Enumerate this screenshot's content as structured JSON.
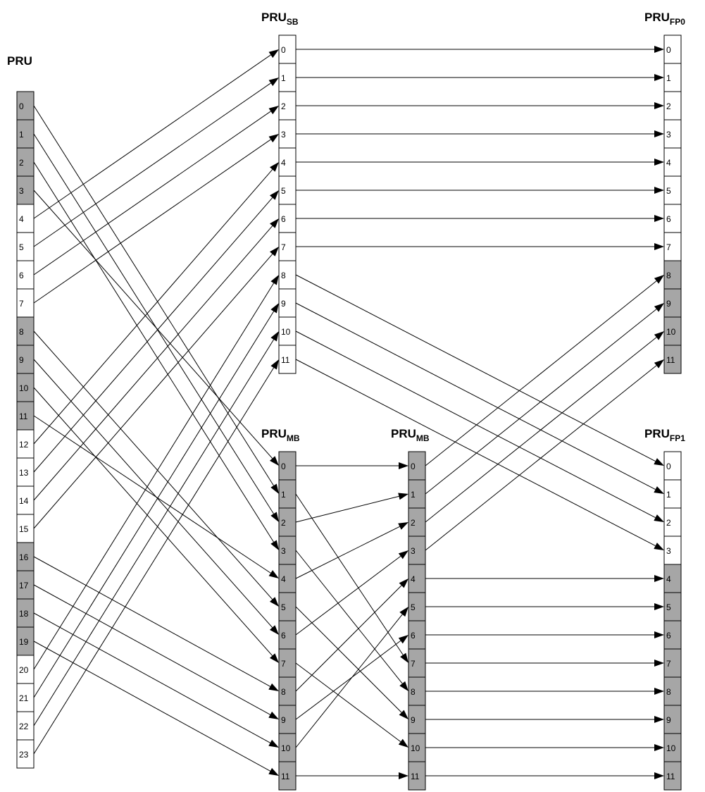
{
  "colors": {
    "shaded": "#a6a6a6",
    "plain": "#ffffff",
    "line": "#000000"
  },
  "titles": {
    "pru": "PRU",
    "pru_sb_main": "PRU",
    "pru_sb_sub": "SB",
    "pru_fp0_main": "PRU",
    "pru_fp0_sub": "FP0",
    "pru_mb1_main": "PRU",
    "pru_mb1_sub": "MB",
    "pru_mb2_main": "PRU",
    "pru_mb2_sub": "MB",
    "pru_fp1_main": "PRU",
    "pru_fp1_sub": "FP1"
  },
  "arrays": {
    "PRU": {
      "labels": [
        "0",
        "1",
        "2",
        "3",
        "4",
        "5",
        "6",
        "7",
        "8",
        "9",
        "10",
        "11",
        "12",
        "13",
        "14",
        "15",
        "16",
        "17",
        "18",
        "19",
        "20",
        "21",
        "22",
        "23"
      ],
      "shaded": [
        0,
        1,
        2,
        3,
        8,
        9,
        10,
        11,
        16,
        17,
        18,
        19
      ]
    },
    "PRU_SB": {
      "labels": [
        "0",
        "1",
        "2",
        "3",
        "4",
        "5",
        "6",
        "7",
        "8",
        "9",
        "10",
        "11"
      ],
      "shaded": []
    },
    "PRU_FP0": {
      "labels": [
        "0",
        "1",
        "2",
        "3",
        "4",
        "5",
        "6",
        "7",
        "8",
        "9",
        "10",
        "11"
      ],
      "shaded": [
        8,
        9,
        10,
        11
      ]
    },
    "PRU_MB1": {
      "labels": [
        "0",
        "1",
        "2",
        "3",
        "4",
        "5",
        "6",
        "7",
        "8",
        "9",
        "10",
        "11"
      ],
      "shaded": [
        0,
        1,
        2,
        3,
        4,
        5,
        6,
        7,
        8,
        9,
        10,
        11
      ]
    },
    "PRU_MB2": {
      "labels": [
        "0",
        "1",
        "2",
        "3",
        "4",
        "5",
        "6",
        "7",
        "8",
        "9",
        "10",
        "11"
      ],
      "shaded": [
        0,
        1,
        2,
        3,
        4,
        5,
        6,
        7,
        8,
        9,
        10,
        11
      ]
    },
    "PRU_FP1": {
      "labels": [
        "0",
        "1",
        "2",
        "3",
        "4",
        "5",
        "6",
        "7",
        "8",
        "9",
        "10",
        "11"
      ],
      "shaded": [
        4,
        5,
        6,
        7,
        8,
        9,
        10,
        11
      ]
    }
  },
  "connections": [
    {
      "from": "PRU",
      "from_cell": 0,
      "to": "PRU_MB1",
      "to_cell": 1
    },
    {
      "from": "PRU",
      "from_cell": 1,
      "to": "PRU_MB1",
      "to_cell": 2
    },
    {
      "from": "PRU",
      "from_cell": 2,
      "to": "PRU_MB1",
      "to_cell": 3
    },
    {
      "from": "PRU",
      "from_cell": 3,
      "to": "PRU_MB1",
      "to_cell": 0
    },
    {
      "from": "PRU",
      "from_cell": 4,
      "to": "PRU_SB",
      "to_cell": 0
    },
    {
      "from": "PRU",
      "from_cell": 5,
      "to": "PRU_SB",
      "to_cell": 1
    },
    {
      "from": "PRU",
      "from_cell": 6,
      "to": "PRU_SB",
      "to_cell": 2
    },
    {
      "from": "PRU",
      "from_cell": 7,
      "to": "PRU_SB",
      "to_cell": 3
    },
    {
      "from": "PRU",
      "from_cell": 8,
      "to": "PRU_MB1",
      "to_cell": 5
    },
    {
      "from": "PRU",
      "from_cell": 9,
      "to": "PRU_MB1",
      "to_cell": 6
    },
    {
      "from": "PRU",
      "from_cell": 10,
      "to": "PRU_MB1",
      "to_cell": 7
    },
    {
      "from": "PRU",
      "from_cell": 11,
      "to": "PRU_MB1",
      "to_cell": 4
    },
    {
      "from": "PRU",
      "from_cell": 12,
      "to": "PRU_SB",
      "to_cell": 4
    },
    {
      "from": "PRU",
      "from_cell": 13,
      "to": "PRU_SB",
      "to_cell": 5
    },
    {
      "from": "PRU",
      "from_cell": 14,
      "to": "PRU_SB",
      "to_cell": 6
    },
    {
      "from": "PRU",
      "from_cell": 15,
      "to": "PRU_SB",
      "to_cell": 7
    },
    {
      "from": "PRU",
      "from_cell": 16,
      "to": "PRU_MB1",
      "to_cell": 8
    },
    {
      "from": "PRU",
      "from_cell": 17,
      "to": "PRU_MB1",
      "to_cell": 9
    },
    {
      "from": "PRU",
      "from_cell": 18,
      "to": "PRU_MB1",
      "to_cell": 10
    },
    {
      "from": "PRU",
      "from_cell": 19,
      "to": "PRU_MB1",
      "to_cell": 11
    },
    {
      "from": "PRU",
      "from_cell": 20,
      "to": "PRU_SB",
      "to_cell": 8
    },
    {
      "from": "PRU",
      "from_cell": 21,
      "to": "PRU_SB",
      "to_cell": 9
    },
    {
      "from": "PRU",
      "from_cell": 22,
      "to": "PRU_SB",
      "to_cell": 10
    },
    {
      "from": "PRU",
      "from_cell": 23,
      "to": "PRU_SB",
      "to_cell": 11
    },
    {
      "from": "PRU_SB",
      "from_cell": 0,
      "to": "PRU_FP0",
      "to_cell": 0
    },
    {
      "from": "PRU_SB",
      "from_cell": 1,
      "to": "PRU_FP0",
      "to_cell": 1
    },
    {
      "from": "PRU_SB",
      "from_cell": 2,
      "to": "PRU_FP0",
      "to_cell": 2
    },
    {
      "from": "PRU_SB",
      "from_cell": 3,
      "to": "PRU_FP0",
      "to_cell": 3
    },
    {
      "from": "PRU_SB",
      "from_cell": 4,
      "to": "PRU_FP0",
      "to_cell": 4
    },
    {
      "from": "PRU_SB",
      "from_cell": 5,
      "to": "PRU_FP0",
      "to_cell": 5
    },
    {
      "from": "PRU_SB",
      "from_cell": 6,
      "to": "PRU_FP0",
      "to_cell": 6
    },
    {
      "from": "PRU_SB",
      "from_cell": 7,
      "to": "PRU_FP0",
      "to_cell": 7
    },
    {
      "from": "PRU_SB",
      "from_cell": 8,
      "to": "PRU_FP1",
      "to_cell": 0
    },
    {
      "from": "PRU_SB",
      "from_cell": 9,
      "to": "PRU_FP1",
      "to_cell": 1
    },
    {
      "from": "PRU_SB",
      "from_cell": 10,
      "to": "PRU_FP1",
      "to_cell": 2
    },
    {
      "from": "PRU_SB",
      "from_cell": 11,
      "to": "PRU_FP1",
      "to_cell": 3
    },
    {
      "from": "PRU_MB1",
      "from_cell": 0,
      "to": "PRU_MB2",
      "to_cell": 0
    },
    {
      "from": "PRU_MB1",
      "from_cell": 1,
      "to": "PRU_MB2",
      "to_cell": 7
    },
    {
      "from": "PRU_MB1",
      "from_cell": 2,
      "to": "PRU_MB2",
      "to_cell": 1
    },
    {
      "from": "PRU_MB1",
      "from_cell": 3,
      "to": "PRU_MB2",
      "to_cell": 8
    },
    {
      "from": "PRU_MB1",
      "from_cell": 4,
      "to": "PRU_MB2",
      "to_cell": 2
    },
    {
      "from": "PRU_MB1",
      "from_cell": 5,
      "to": "PRU_MB2",
      "to_cell": 9
    },
    {
      "from": "PRU_MB1",
      "from_cell": 6,
      "to": "PRU_MB2",
      "to_cell": 3
    },
    {
      "from": "PRU_MB1",
      "from_cell": 7,
      "to": "PRU_MB2",
      "to_cell": 10
    },
    {
      "from": "PRU_MB1",
      "from_cell": 8,
      "to": "PRU_MB2",
      "to_cell": 4
    },
    {
      "from": "PRU_MB1",
      "from_cell": 9,
      "to": "PRU_MB2",
      "to_cell": 6
    },
    {
      "from": "PRU_MB1",
      "from_cell": 10,
      "to": "PRU_MB2",
      "to_cell": 5
    },
    {
      "from": "PRU_MB1",
      "from_cell": 11,
      "to": "PRU_MB2",
      "to_cell": 11
    },
    {
      "from": "PRU_MB2",
      "from_cell": 0,
      "to": "PRU_FP0",
      "to_cell": 8
    },
    {
      "from": "PRU_MB2",
      "from_cell": 1,
      "to": "PRU_FP0",
      "to_cell": 9
    },
    {
      "from": "PRU_MB2",
      "from_cell": 2,
      "to": "PRU_FP0",
      "to_cell": 10
    },
    {
      "from": "PRU_MB2",
      "from_cell": 3,
      "to": "PRU_FP0",
      "to_cell": 11
    },
    {
      "from": "PRU_MB2",
      "from_cell": 4,
      "to": "PRU_FP1",
      "to_cell": 4
    },
    {
      "from": "PRU_MB2",
      "from_cell": 5,
      "to": "PRU_FP1",
      "to_cell": 5
    },
    {
      "from": "PRU_MB2",
      "from_cell": 6,
      "to": "PRU_FP1",
      "to_cell": 6
    },
    {
      "from": "PRU_MB2",
      "from_cell": 7,
      "to": "PRU_FP1",
      "to_cell": 7
    },
    {
      "from": "PRU_MB2",
      "from_cell": 8,
      "to": "PRU_FP1",
      "to_cell": 8
    },
    {
      "from": "PRU_MB2",
      "from_cell": 9,
      "to": "PRU_FP1",
      "to_cell": 9
    },
    {
      "from": "PRU_MB2",
      "from_cell": 10,
      "to": "PRU_FP1",
      "to_cell": 10
    },
    {
      "from": "PRU_MB2",
      "from_cell": 11,
      "to": "PRU_FP1",
      "to_cell": 11
    }
  ]
}
